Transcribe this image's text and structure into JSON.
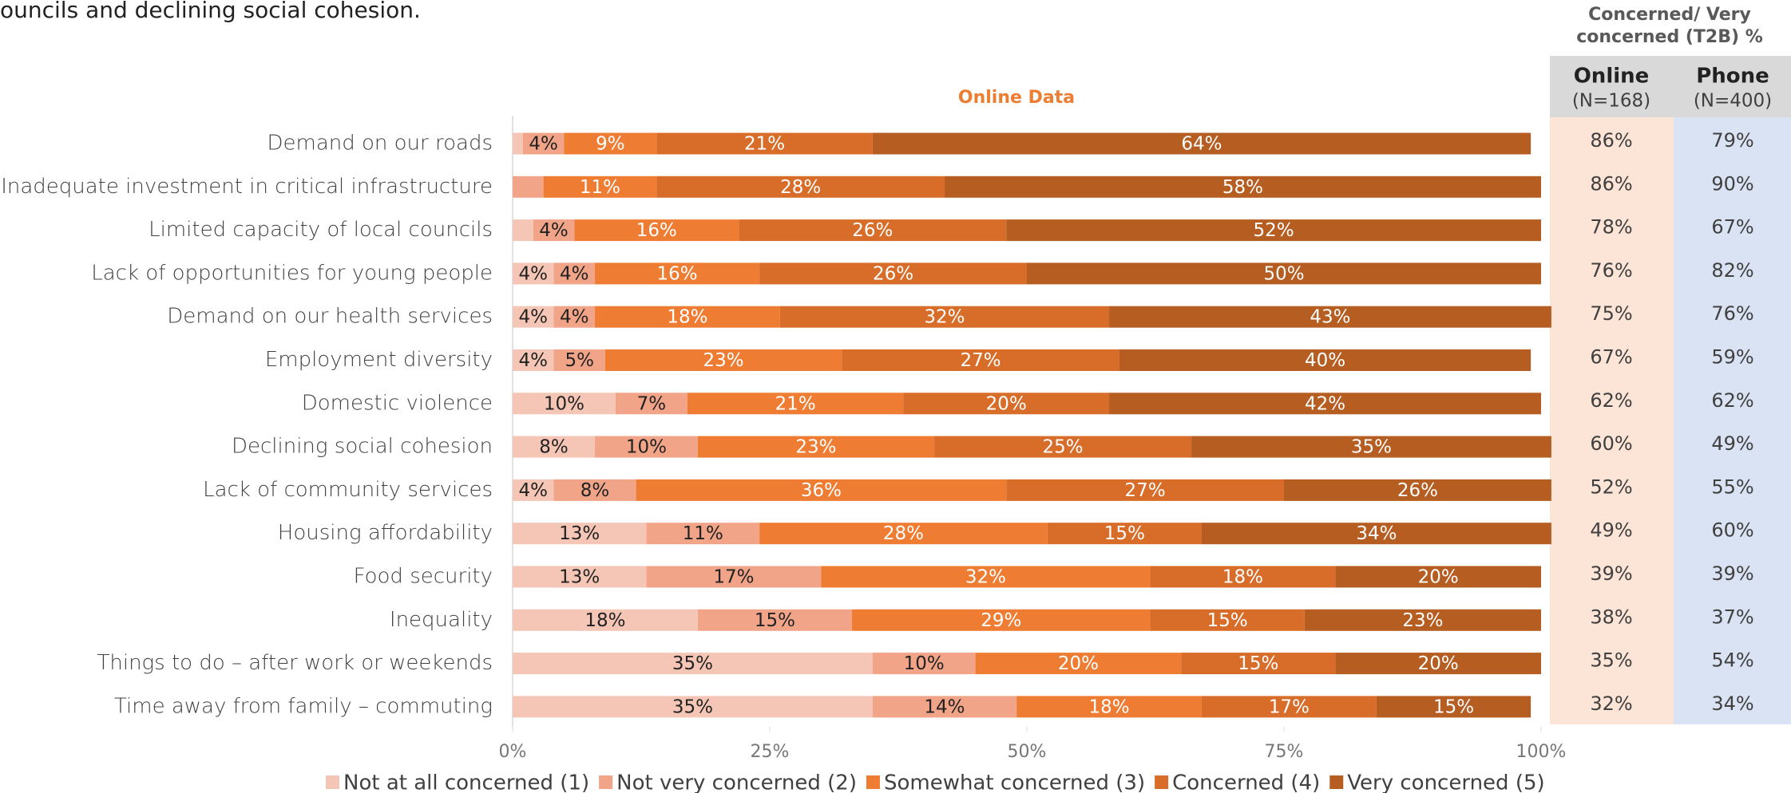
{
  "caption": "ouncils and declining social cohesion.",
  "chart_data": {
    "type": "stacked-bar-horizontal",
    "subtitle": "Online Data",
    "categories": [
      "Demand on our roads",
      "Inadequate investment in critical infrastructure",
      "Limited capacity of local councils",
      "Lack of opportunities for young people",
      "Demand on our health services",
      "Employment diversity",
      "Domestic violence",
      "Declining social cohesion",
      "Lack of community services",
      "Housing affordability",
      "Food security",
      "Inequality",
      "Things to do – after work or weekends",
      "Time away from family – commuting"
    ],
    "series": [
      {
        "name": "Not at all concerned (1)",
        "color": "#f5c6b5",
        "values": [
          1,
          0,
          2,
          4,
          4,
          4,
          10,
          8,
          4,
          13,
          13,
          18,
          35,
          35
        ],
        "value_labels": [
          null,
          null,
          null,
          "4%",
          "4%",
          "4%",
          "10%",
          "8%",
          "4%",
          "13%",
          "13%",
          "18%",
          "35%",
          "35%"
        ]
      },
      {
        "name": "Not very concerned (2)",
        "color": "#f1a488",
        "values": [
          4,
          3,
          4,
          4,
          4,
          5,
          7,
          10,
          8,
          11,
          17,
          15,
          10,
          14
        ],
        "value_labels": [
          "4%",
          null,
          "4%",
          "4%",
          "4%",
          "5%",
          "7%",
          "10%",
          "8%",
          "11%",
          "17%",
          "15%",
          "10%",
          "14%"
        ]
      },
      {
        "name": "Somewhat concerned (3)",
        "color": "#ee7d33",
        "values": [
          9,
          11,
          16,
          16,
          18,
          23,
          21,
          23,
          36,
          28,
          32,
          29,
          20,
          18
        ],
        "value_labels": [
          "9%",
          "11%",
          "16%",
          "16%",
          "18%",
          "23%",
          "21%",
          "23%",
          "36%",
          "28%",
          "32%",
          "29%",
          "20%",
          "18%"
        ]
      },
      {
        "name": "Concerned (4)",
        "color": "#d86d2a",
        "values": [
          21,
          28,
          26,
          26,
          32,
          27,
          20,
          25,
          27,
          15,
          18,
          15,
          15,
          17
        ],
        "value_labels": [
          "21%",
          "28%",
          "26%",
          "26%",
          "32%",
          "27%",
          "20%",
          "25%",
          "27%",
          "15%",
          "18%",
          "15%",
          "15%",
          "17%"
        ]
      },
      {
        "name": "Very concerned (5)",
        "color": "#b65d21",
        "values": [
          64,
          58,
          52,
          50,
          43,
          40,
          42,
          35,
          26,
          34,
          20,
          23,
          20,
          15
        ],
        "value_labels": [
          "64%",
          "58%",
          "52%",
          "50%",
          "43%",
          "40%",
          "42%",
          "35%",
          "26%",
          "34%",
          "20%",
          "23%",
          "20%",
          "15%"
        ]
      }
    ],
    "xlim": [
      0,
      100
    ],
    "xticks": [
      {
        "value": 0,
        "label": "0%"
      },
      {
        "value": 25,
        "label": "25%"
      },
      {
        "value": 50,
        "label": "50%"
      },
      {
        "value": 75,
        "label": "75%"
      },
      {
        "value": 100,
        "label": "100%"
      }
    ],
    "grid": false,
    "legend": "bottom"
  },
  "table": {
    "title": [
      "Concerned/ Very",
      "concerned (T2B) %"
    ],
    "columns": [
      {
        "name": "Online",
        "n": "(N=168)"
      },
      {
        "name": "Phone",
        "n": "(N=400)"
      }
    ],
    "rows": [
      [
        "86%",
        "79%"
      ],
      [
        "86%",
        "90%"
      ],
      [
        "78%",
        "67%"
      ],
      [
        "76%",
        "82%"
      ],
      [
        "75%",
        "76%"
      ],
      [
        "67%",
        "59%"
      ],
      [
        "62%",
        "62%"
      ],
      [
        "60%",
        "49%"
      ],
      [
        "52%",
        "55%"
      ],
      [
        "49%",
        "60%"
      ],
      [
        "39%",
        "39%"
      ],
      [
        "38%",
        "37%"
      ],
      [
        "35%",
        "54%"
      ],
      [
        "32%",
        "34%"
      ]
    ]
  }
}
